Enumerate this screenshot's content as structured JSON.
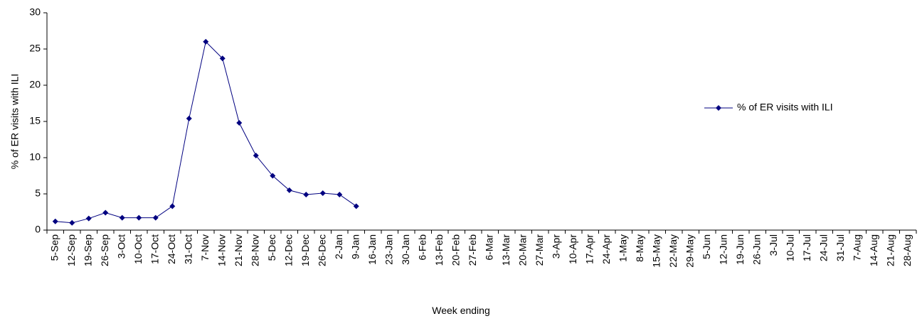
{
  "chart_data": {
    "type": "line",
    "x_label": "Week ending",
    "y_label": "% of ER visits with ILI",
    "categories": [
      "5-Sep",
      "12-Sep",
      "19-Sep",
      "26-Sep",
      "3-Oct",
      "10-Oct",
      "17-Oct",
      "24-Oct",
      "31-Oct",
      "7-Nov",
      "14-Nov",
      "21-Nov",
      "28-Nov",
      "5-Dec",
      "12-Dec",
      "19-Dec",
      "26-Dec",
      "2-Jan",
      "9-Jan",
      "16-Jan",
      "23-Jan",
      "30-Jan",
      "6-Feb",
      "13-Feb",
      "20-Feb",
      "27-Feb",
      "6-Mar",
      "13-Mar",
      "20-Mar",
      "27-Mar",
      "3-Apr",
      "10-Apr",
      "17-Apr",
      "24-Apr",
      "1-May",
      "8-May",
      "15-May",
      "22-May",
      "29-May",
      "5-Jun",
      "12-Jun",
      "19-Jun",
      "26-Jun",
      "3-Jul",
      "10-Jul",
      "17-Jul",
      "24-Jul",
      "31-Jul",
      "7-Aug",
      "14-Aug",
      "21-Aug",
      "28-Aug"
    ],
    "series": [
      {
        "name": "% of ER visits with ILI",
        "color": "#000080",
        "values": [
          1.2,
          1.0,
          1.6,
          2.4,
          1.7,
          1.7,
          1.7,
          3.3,
          15.4,
          26.0,
          23.7,
          14.8,
          10.3,
          7.5,
          5.5,
          4.9,
          5.1,
          4.9,
          3.3,
          null,
          null,
          null,
          null,
          null,
          null,
          null,
          null,
          null,
          null,
          null,
          null,
          null,
          null,
          null,
          null,
          null,
          null,
          null,
          null,
          null,
          null,
          null,
          null,
          null,
          null,
          null,
          null,
          null,
          null,
          null,
          null,
          null
        ]
      }
    ],
    "ylim": [
      0,
      30
    ],
    "yticks": [
      0,
      5,
      10,
      15,
      20,
      25,
      30
    ],
    "legend": "right"
  }
}
